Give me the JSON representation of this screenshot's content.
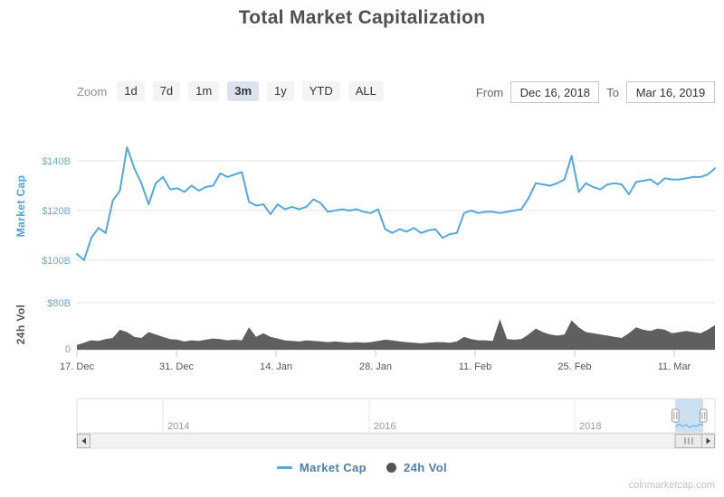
{
  "title": "Total Market Capitalization",
  "watermark": "coinmarketcap.com",
  "controls": {
    "zoom_label": "Zoom",
    "zoom_buttons": [
      {
        "label": "1d",
        "selected": false
      },
      {
        "label": "7d",
        "selected": false
      },
      {
        "label": "1m",
        "selected": false
      },
      {
        "label": "3m",
        "selected": true
      },
      {
        "label": "1y",
        "selected": false
      },
      {
        "label": "YTD",
        "selected": false
      },
      {
        "label": "ALL",
        "selected": false
      }
    ],
    "from_label": "From",
    "from_value": "Dec 16, 2018",
    "to_label": "To",
    "to_value": "Mar 16, 2019"
  },
  "legend": [
    {
      "name": "Market Cap",
      "marker": "line",
      "color": "#54a8da"
    },
    {
      "name": "24h Vol",
      "marker": "circle",
      "color": "#555555"
    }
  ],
  "chart_data": {
    "type": "line",
    "title": "Total Market Capitalization",
    "x_range": [
      "Dec 16, 2018",
      "Mar 16, 2019"
    ],
    "x_ticks": [
      "17. Dec",
      "31. Dec",
      "14. Jan",
      "28. Jan",
      "11. Feb",
      "25. Feb",
      "11. Mar"
    ],
    "navigator_ticks": [
      "2014",
      "2016",
      "2018"
    ],
    "grid": true,
    "legend_position": "bottom",
    "panes": [
      {
        "title": "Market Cap",
        "unit": "$B",
        "ylim": [
          96,
          148
        ],
        "y_ticks": [
          "$100B",
          "$120B",
          "$140B"
        ]
      },
      {
        "title": "24h Vol",
        "unit": "$B",
        "ylim": [
          0,
          80
        ],
        "y_ticks": [
          "0",
          "$80B"
        ]
      }
    ],
    "series": [
      {
        "name": "Market Cap",
        "type": "line",
        "color": "#54a8da",
        "pane": 0,
        "x_unit": "day (Dec 17 2018 - Mar 16 2019)",
        "values": [
          102.5,
          100,
          109,
          113,
          111,
          124,
          128,
          145.5,
          137,
          131,
          122.5,
          131,
          133.5,
          128.5,
          129,
          127.5,
          130,
          128,
          129.5,
          130,
          135,
          133.5,
          134.5,
          135.5,
          123.5,
          122,
          122.5,
          118.5,
          122.5,
          120.5,
          121.5,
          120.5,
          121.5,
          124.5,
          123,
          119.5,
          120,
          120.5,
          120,
          120.5,
          119.5,
          119,
          120.5,
          112.5,
          111,
          112.5,
          111.5,
          113,
          111,
          112,
          112.5,
          109,
          110.5,
          111,
          119,
          120,
          119,
          119.5,
          119.5,
          119,
          119.5,
          120,
          120.5,
          125,
          131,
          130.5,
          130,
          131,
          132.5,
          142,
          127.5,
          131,
          129.5,
          128.5,
          130.5,
          131,
          130.5,
          126.5,
          131.5,
          132,
          132.5,
          130.5,
          133,
          132.5,
          132.5,
          133,
          133.5,
          133.5,
          134.5,
          137
        ]
      },
      {
        "name": "24h Vol",
        "type": "area",
        "color": "#5f5f5f",
        "pane": 1,
        "x_unit": "day (Dec 17 2018 - Mar 16 2019)",
        "values": [
          8,
          12,
          16,
          15,
          18,
          20,
          34,
          30,
          22,
          20,
          30,
          26,
          22,
          18,
          17,
          14,
          16,
          15,
          17,
          19,
          18,
          16,
          17,
          16,
          38,
          22,
          28,
          22,
          19,
          16,
          15,
          14,
          16,
          15,
          14,
          13,
          14,
          13,
          12,
          13,
          12,
          13,
          15,
          17,
          16,
          14,
          13,
          12,
          11,
          12,
          13,
          13,
          12,
          14,
          22,
          18,
          16,
          16,
          15,
          52,
          18,
          17,
          18,
          26,
          36,
          30,
          26,
          24,
          26,
          50,
          38,
          30,
          28,
          26,
          24,
          22,
          20,
          28,
          38,
          34,
          32,
          36,
          34,
          28,
          30,
          32,
          30,
          28,
          34,
          42
        ]
      }
    ]
  }
}
